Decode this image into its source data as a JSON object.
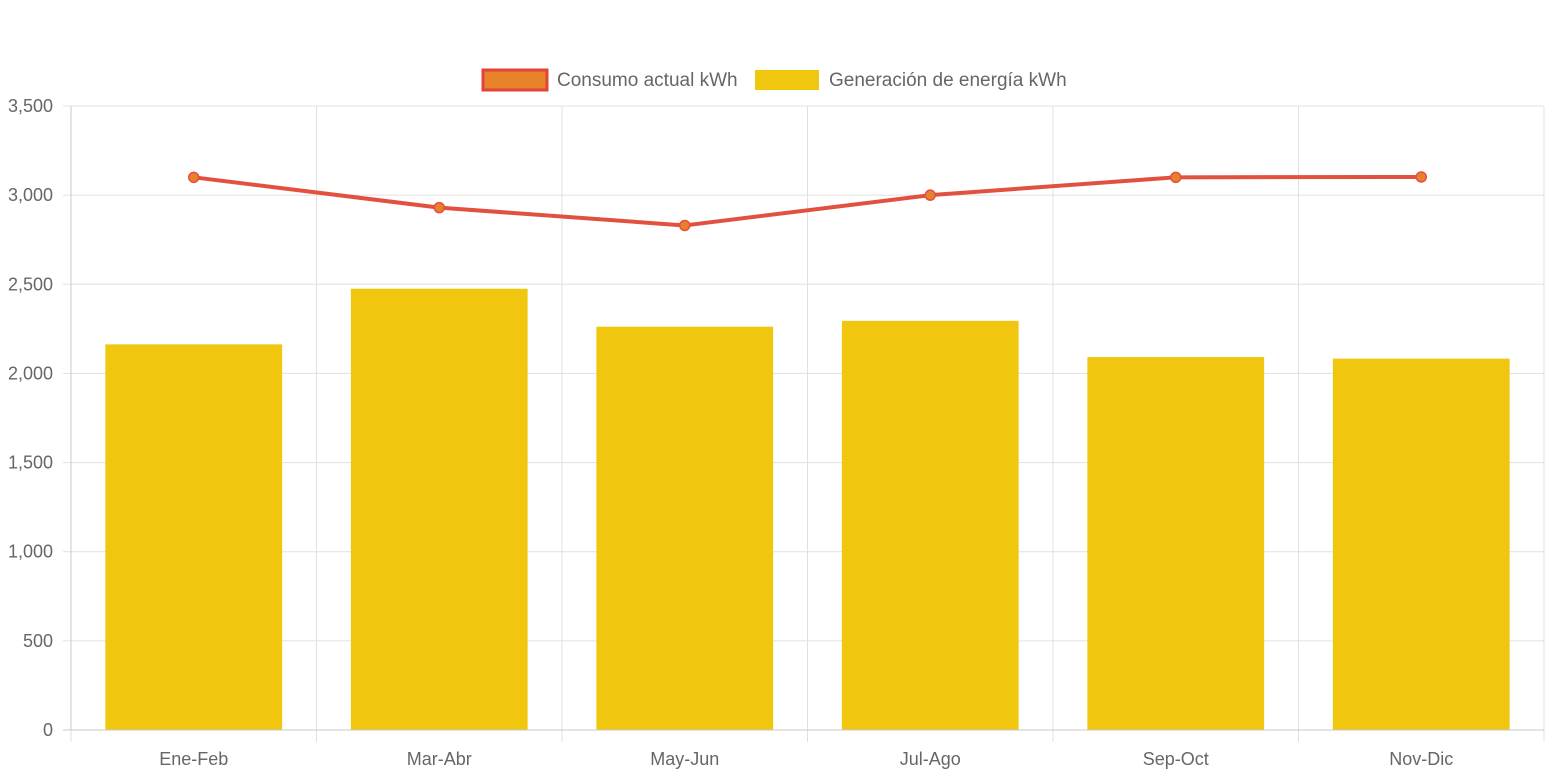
{
  "chart_data": {
    "type": "bar",
    "categories": [
      "Ene-Feb",
      "Mar-Abr",
      "May-Jun",
      "Jul-Ago",
      "Sep-Oct",
      "Nov-Dic"
    ],
    "series": [
      {
        "name": "Consumo actual kWh",
        "kind": "line",
        "values": [
          3100,
          2930,
          2830,
          3000,
          3100,
          3102
        ],
        "color": "#e2513f",
        "point_color": "#e8802c"
      },
      {
        "name": "Generación de energía kWh",
        "kind": "bar",
        "values": [
          2163,
          2475,
          2262,
          2295,
          2092,
          2083
        ],
        "color": "#f0c60f"
      }
    ],
    "title": "",
    "xlabel": "",
    "ylabel": "",
    "ylim": [
      0,
      3500
    ],
    "yticks": [
      0,
      500,
      1000,
      1500,
      2000,
      2500,
      3000,
      3500
    ],
    "ytick_labels": [
      "0",
      "500",
      "1,000",
      "1,500",
      "2,000",
      "2,500",
      "3,000",
      "3,500"
    ],
    "grid": true,
    "legend_position": "top-center"
  },
  "colors": {
    "grid": "#e0e0e0",
    "axis": "#c8c8c8",
    "legend_line_border": "#e2433b",
    "legend_line_fill": "#e8832a"
  }
}
